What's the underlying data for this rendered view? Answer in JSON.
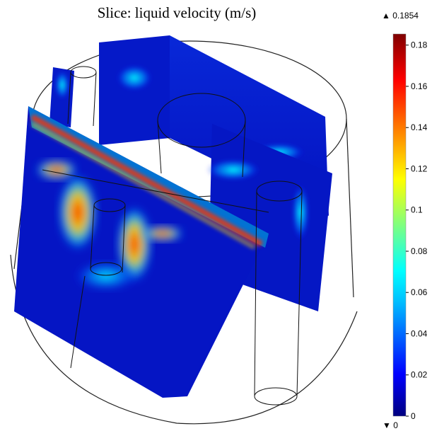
{
  "plot": {
    "title": "Slice: liquid velocity (m/s)",
    "colorbar": {
      "max_label": "▲ 0.1854",
      "min_label": "▼ 0",
      "ticks": [
        "0.18",
        "0.16",
        "0.14",
        "0.12",
        "0.1",
        "0.08",
        "0.06",
        "0.04",
        "0.02",
        "0"
      ],
      "tick_values": [
        0.18,
        0.16,
        0.14,
        0.12,
        0.1,
        0.08,
        0.06,
        0.04,
        0.02,
        0
      ],
      "range": [
        0,
        0.1854
      ],
      "colormap": [
        "#00007f",
        "#0000ff",
        "#00bfff",
        "#00ffff",
        "#7fff7f",
        "#ffff00",
        "#ff7f00",
        "#ff0000",
        "#7f0000"
      ]
    }
  }
}
